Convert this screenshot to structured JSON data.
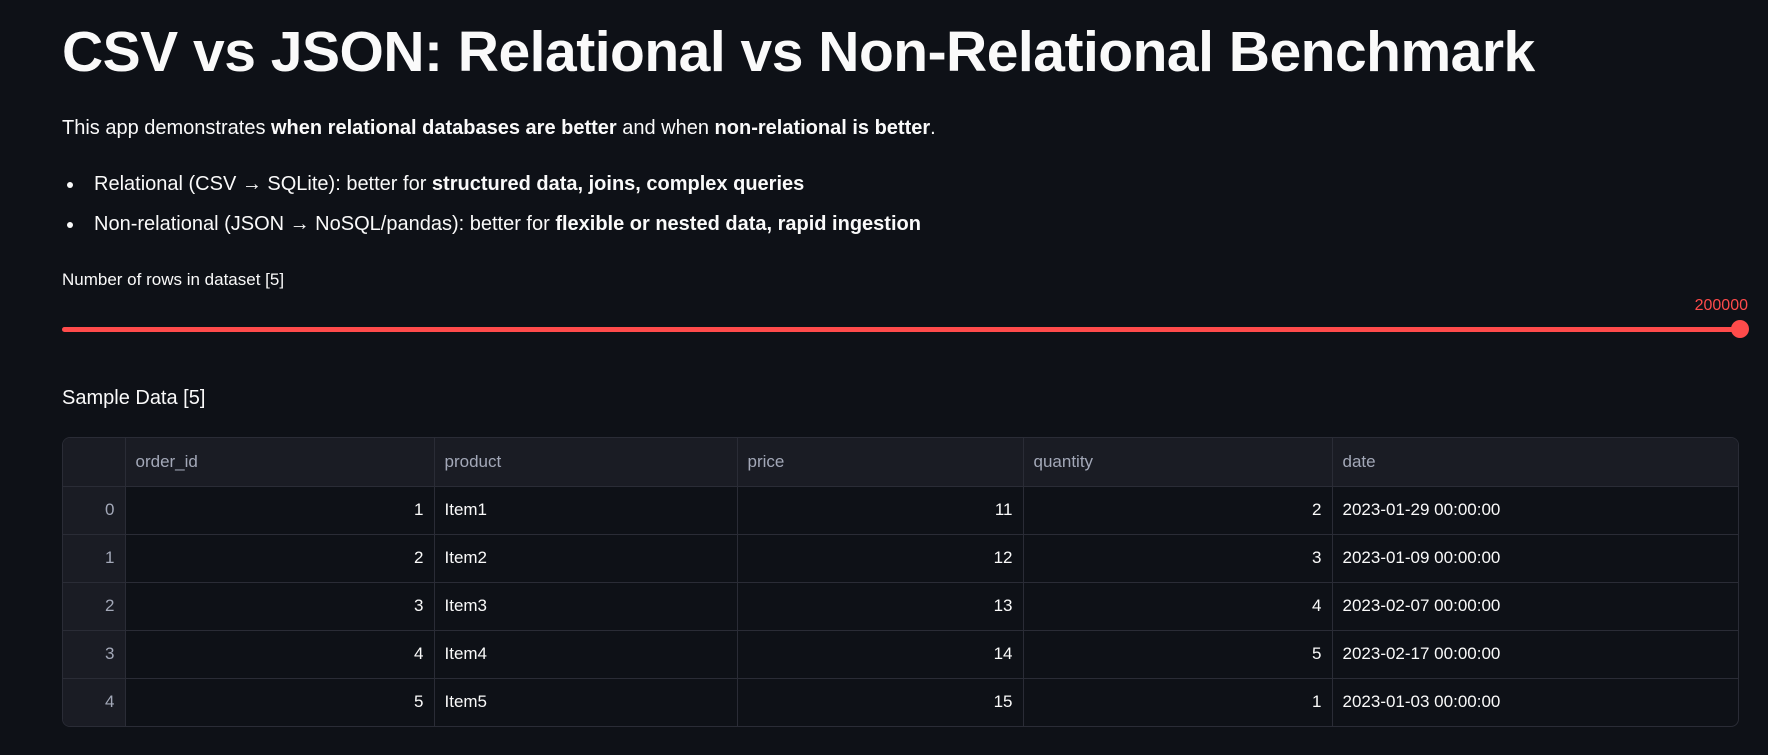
{
  "title": "CSV vs JSON: Relational vs Non-Relational Benchmark",
  "intro": {
    "prefix": "This app demonstrates ",
    "bold1": "when relational databases are better",
    "middle": " and when ",
    "bold2": "non-relational is better",
    "suffix": "."
  },
  "bullets": [
    {
      "text": "Relational (CSV → SQLite): better for ",
      "bold": "structured data, joins, complex queries"
    },
    {
      "text": "Non-relational (JSON → NoSQL/pandas): better for ",
      "bold": "flexible or nested data, rapid ingestion"
    }
  ],
  "slider": {
    "label": "Number of rows in dataset [5]",
    "value": "200000",
    "fraction": 1.0,
    "color": "#ff4b4b"
  },
  "sample_title": "Sample Data [5]",
  "table": {
    "columns": [
      "",
      "order_id",
      "product",
      "price",
      "quantity",
      "date"
    ],
    "rows": [
      {
        "index": "0",
        "order_id": "1",
        "product": "Item1",
        "price": "11",
        "quantity": "2",
        "date": "2023-01-29 00:00:00"
      },
      {
        "index": "1",
        "order_id": "2",
        "product": "Item2",
        "price": "12",
        "quantity": "3",
        "date": "2023-01-09 00:00:00"
      },
      {
        "index": "2",
        "order_id": "3",
        "product": "Item3",
        "price": "13",
        "quantity": "4",
        "date": "2023-02-07 00:00:00"
      },
      {
        "index": "3",
        "order_id": "4",
        "product": "Item4",
        "price": "14",
        "quantity": "5",
        "date": "2023-02-17 00:00:00"
      },
      {
        "index": "4",
        "order_id": "5",
        "product": "Item5",
        "price": "15",
        "quantity": "1",
        "date": "2023-01-03 00:00:00"
      }
    ]
  }
}
